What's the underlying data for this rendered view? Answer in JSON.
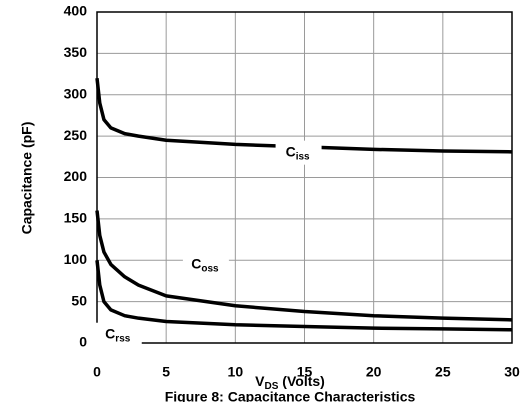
{
  "chart_data": {
    "type": "line",
    "ylabel": "Capacitance (pF)",
    "xlabel": {
      "main": "V",
      "sub": "DS",
      "rest": " (Volts)"
    },
    "caption": "Figure 8: Capacitance Characteristics",
    "x": [
      0,
      0.2,
      0.5,
      1,
      2,
      3,
      5,
      10,
      15,
      20,
      25,
      30
    ],
    "series": [
      {
        "name": "C",
        "subscript": "iss",
        "color": "#000000",
        "values": [
          320,
          290,
          270,
          260,
          253,
          250,
          245,
          240,
          237,
          234,
          232,
          231
        ],
        "label_at": [
          14.5,
          230
        ]
      },
      {
        "name": "C",
        "subscript": "oss",
        "color": "#000000",
        "values": [
          160,
          130,
          110,
          95,
          80,
          70,
          57,
          45,
          38,
          33,
          30,
          28
        ],
        "label_at": [
          7.8,
          95
        ]
      },
      {
        "name": "C",
        "subscript": "rss",
        "color": "#000000",
        "values": [
          100,
          70,
          50,
          40,
          33,
          30,
          26,
          22,
          20,
          18,
          17,
          16
        ],
        "label_at": [
          1.5,
          10
        ]
      }
    ],
    "xlim": [
      0,
      30
    ],
    "xticks": [
      0,
      5,
      10,
      15,
      20,
      25,
      30
    ],
    "ylim": [
      0,
      400
    ],
    "yticks": [
      0,
      50,
      100,
      150,
      200,
      250,
      300,
      350,
      400
    ],
    "grid": true
  }
}
